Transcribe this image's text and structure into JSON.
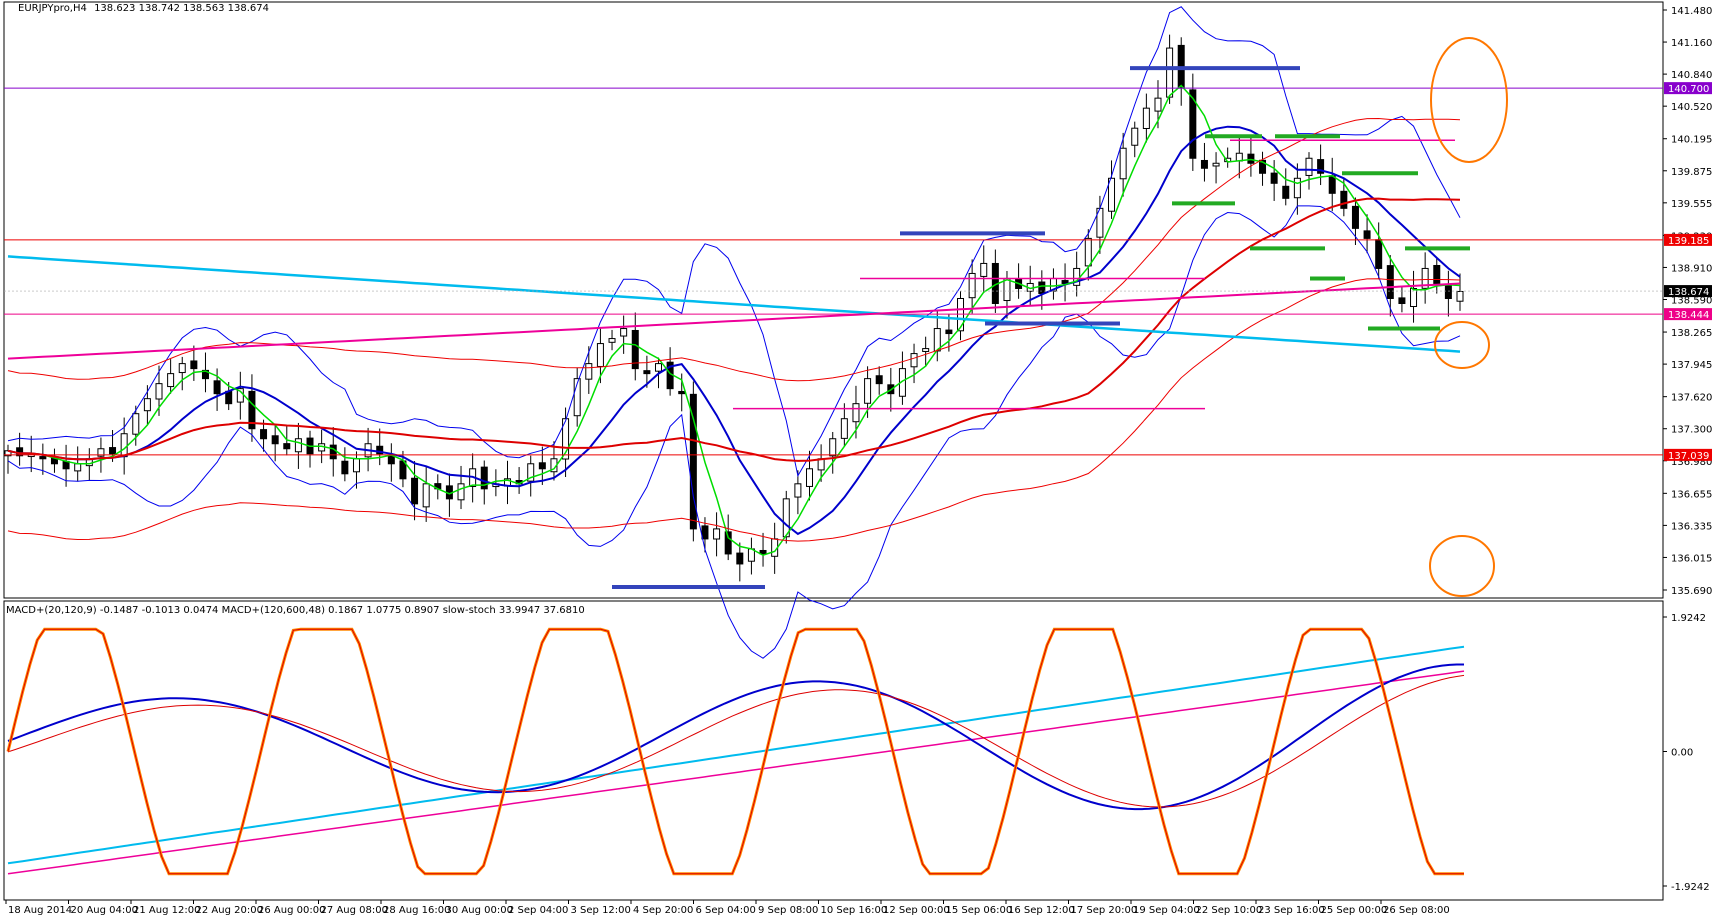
{
  "colors": {
    "candle_up": "#ffffff",
    "candle_down": "#000000",
    "bb_outer": "#0000ee",
    "ma_green": "#00dd00",
    "ma_blue": "#0000cc",
    "ma_red": "#dd0000",
    "ma_cyan": "#00bbee",
    "ma_pink": "#ee0099",
    "env_red": "#ee0000",
    "hline_purple": "#8800cc",
    "hline_red": "#ee0000",
    "hline_pink": "#ee0088",
    "stoch": "#ff8800",
    "level_blue": "#3344bb",
    "level_green": "#22aa22",
    "circle": "#ff7700"
  },
  "chart_data": [
    {
      "type": "candlestick",
      "title": "EURJPYpro,H4",
      "header_values": "138.623 138.742 138.563 138.674",
      "ylim": [
        135.69,
        141.48
      ],
      "y_ticks": [
        "141.480",
        "141.160",
        "140.840",
        "140.520",
        "140.195",
        "139.875",
        "139.555",
        "139.230",
        "138.910",
        "138.590",
        "138.265",
        "137.945",
        "137.620",
        "137.300",
        "136.980",
        "136.655",
        "136.335",
        "136.015",
        "135.690"
      ],
      "x_ticks": [
        "18 Aug 2014",
        "20 Aug 04:00",
        "21 Aug 12:00",
        "22 Aug 20:00",
        "26 Aug 00:00",
        "27 Aug 08:00",
        "28 Aug 16:00",
        "30 Aug 00:00",
        "2 Sep 04:00",
        "3 Sep 12:00",
        "4 Sep 20:00",
        "6 Sep 04:00",
        "9 Sep 08:00",
        "10 Sep 16:00",
        "12 Sep 00:00",
        "15 Sep 06:00",
        "16 Sep 12:00",
        "17 Sep 20:00",
        "19 Sep 04:00",
        "22 Sep 10:00",
        "23 Sep 16:00",
        "25 Sep 00:00",
        "26 Sep 08:00"
      ],
      "price_tags": [
        {
          "label": "140.700",
          "value": 140.7,
          "color": "#8800cc"
        },
        {
          "label": "139.185",
          "value": 139.185,
          "color": "#ee0000"
        },
        {
          "label": "138.674",
          "value": 138.674,
          "color": "#000000"
        },
        {
          "label": "138.444",
          "value": 138.444,
          "color": "#ee0088"
        },
        {
          "label": "137.039",
          "value": 137.039,
          "color": "#ee0000"
        }
      ],
      "closes": [
        137.08,
        137.03,
        137.05,
        137.0,
        136.95,
        136.9,
        136.95,
        137.0,
        137.1,
        137.05,
        137.25,
        137.45,
        137.6,
        137.75,
        137.85,
        137.95,
        137.9,
        137.8,
        137.65,
        137.55,
        137.7,
        137.3,
        137.2,
        137.15,
        137.1,
        137.2,
        137.05,
        137.15,
        137.0,
        136.85,
        137.0,
        137.15,
        137.05,
        136.95,
        136.8,
        136.55,
        136.75,
        136.7,
        136.6,
        136.75,
        136.9,
        136.7,
        136.75,
        136.8,
        136.75,
        136.95,
        136.9,
        137.0,
        137.4,
        137.8,
        137.95,
        138.15,
        138.2,
        138.3,
        137.9,
        137.85,
        137.95,
        137.7,
        137.65,
        136.3,
        136.2,
        136.3,
        136.05,
        135.95,
        136.1,
        136.05,
        136.2,
        136.6,
        136.75,
        136.9,
        137.0,
        137.2,
        137.4,
        137.55,
        137.8,
        137.75,
        137.65,
        137.9,
        138.05,
        138.1,
        138.3,
        138.25,
        138.6,
        138.85,
        138.95,
        138.55,
        138.8,
        138.7,
        138.75,
        138.65,
        138.8,
        138.75,
        138.9,
        139.2,
        139.5,
        139.8,
        140.1,
        140.3,
        140.5,
        140.6,
        141.1,
        140.7,
        140.0,
        139.9,
        139.95,
        140.0,
        140.05,
        139.95,
        139.85,
        139.75,
        139.6,
        139.8,
        140.0,
        139.85,
        139.65,
        139.5,
        139.3,
        139.2,
        138.9,
        138.6,
        138.55,
        138.7,
        138.9,
        138.75,
        138.6,
        138.67
      ]
    },
    {
      "type": "line",
      "title": "MACD+(20,120,9) -0.1487 -0.1013 0.0474  MACD+(120,600,48) 0.1867 1.0775 0.8907  slow-stoch 33.9947 37.6810",
      "ylim": [
        -1.9242,
        1.9242
      ],
      "y_ticks": [
        "1.9242",
        "0.00",
        "-1.9242"
      ]
    }
  ]
}
